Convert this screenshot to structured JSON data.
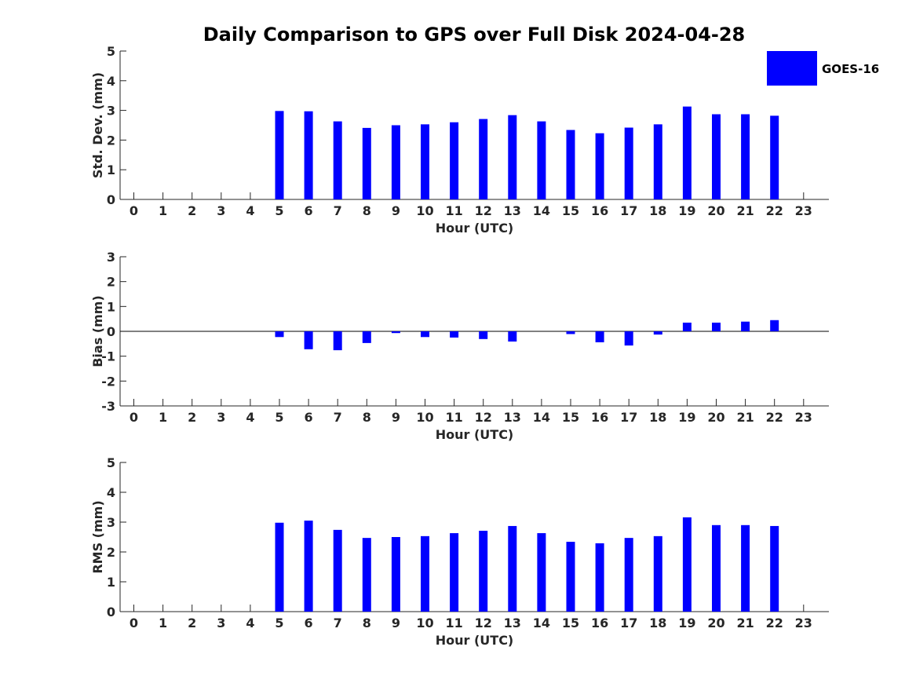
{
  "title": "Daily Comparison to GPS over Full Disk 2024-04-28",
  "colors": {
    "bar": "#0000ff",
    "axis": "#262626",
    "background": "#ffffff"
  },
  "legend": {
    "label": "GOES-16",
    "placement": "top-right"
  },
  "chart_data": [
    {
      "type": "bar",
      "ylabel": "Std. Dev. (mm)",
      "xlabel": "Hour (UTC)",
      "ylim": [
        0,
        5
      ],
      "yticks": [
        "0",
        "1",
        "2",
        "3",
        "4",
        "5"
      ],
      "categories": [
        "0",
        "1",
        "2",
        "3",
        "4",
        "5",
        "6",
        "7",
        "8",
        "9",
        "10",
        "11",
        "12",
        "13",
        "14",
        "15",
        "16",
        "17",
        "18",
        "19",
        "20",
        "21",
        "22",
        "23"
      ],
      "series": [
        {
          "name": "GOES-16",
          "values": [
            null,
            null,
            null,
            null,
            null,
            2.98,
            2.97,
            2.63,
            2.41,
            2.5,
            2.53,
            2.6,
            2.71,
            2.84,
            2.63,
            2.34,
            2.23,
            2.42,
            2.53,
            3.13,
            2.87,
            2.87,
            2.82,
            null
          ]
        }
      ]
    },
    {
      "type": "bar",
      "ylabel": "Bias (mm)",
      "xlabel": "Hour (UTC)",
      "ylim": [
        -3,
        3
      ],
      "yticks": [
        "-3",
        "-2",
        "-1",
        "0",
        "1",
        "2",
        "3"
      ],
      "zero_line": true,
      "categories": [
        "0",
        "1",
        "2",
        "3",
        "4",
        "5",
        "6",
        "7",
        "8",
        "9",
        "10",
        "11",
        "12",
        "13",
        "14",
        "15",
        "16",
        "17",
        "18",
        "19",
        "20",
        "21",
        "22",
        "23"
      ],
      "series": [
        {
          "name": "GOES-16",
          "values": [
            null,
            null,
            null,
            null,
            null,
            -0.23,
            -0.72,
            -0.76,
            -0.47,
            -0.07,
            -0.23,
            -0.25,
            -0.31,
            -0.41,
            0.0,
            -0.11,
            -0.44,
            -0.57,
            -0.13,
            0.35,
            0.35,
            0.39,
            0.45,
            null
          ]
        }
      ]
    },
    {
      "type": "bar",
      "ylabel": "RMS (mm)",
      "xlabel": "Hour (UTC)",
      "ylim": [
        0,
        5
      ],
      "yticks": [
        "0",
        "1",
        "2",
        "3",
        "4",
        "5"
      ],
      "categories": [
        "0",
        "1",
        "2",
        "3",
        "4",
        "5",
        "6",
        "7",
        "8",
        "9",
        "10",
        "11",
        "12",
        "13",
        "14",
        "15",
        "16",
        "17",
        "18",
        "19",
        "20",
        "21",
        "22",
        "23"
      ],
      "series": [
        {
          "name": "GOES-16",
          "values": [
            null,
            null,
            null,
            null,
            null,
            2.98,
            3.05,
            2.74,
            2.47,
            2.5,
            2.53,
            2.63,
            2.71,
            2.87,
            2.63,
            2.34,
            2.29,
            2.47,
            2.53,
            3.16,
            2.9,
            2.9,
            2.87,
            null
          ]
        }
      ]
    }
  ]
}
